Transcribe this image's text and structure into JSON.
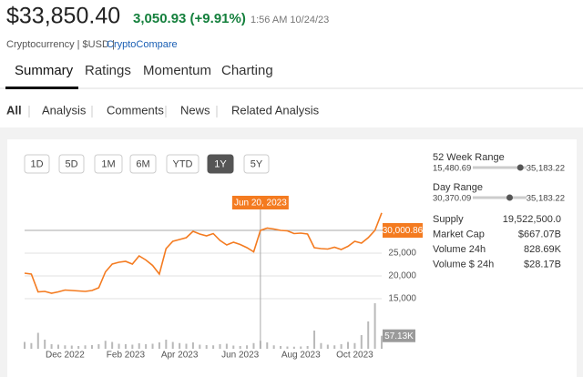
{
  "header": {
    "price": "$33,850.40",
    "change": "3,050.93 (+9.91%)",
    "time": "1:56 AM 10/24/23",
    "category": "Cryptocurrency | $USD |",
    "source": "CryptoCompare"
  },
  "tabs": [
    "Summary",
    "Ratings",
    "Momentum",
    "Charting"
  ],
  "active_tab": 0,
  "subtabs": [
    "All",
    "Analysis",
    "Comments",
    "News",
    "Related Analysis"
  ],
  "active_subtab": 0,
  "ranges": [
    "1D",
    "5D",
    "1M",
    "6M",
    "YTD",
    "1Y",
    "5Y"
  ],
  "active_range": 5,
  "price_value": 33850.4,
  "week52": {
    "title": "52 Week Range",
    "low": {
      "value": 15480.69,
      "label": "15,480.69"
    },
    "high": {
      "value": 35183.22,
      "label": "35,183.22"
    }
  },
  "day": {
    "title": "Day Range",
    "low": {
      "value": 30370.09,
      "label": "30,370.09"
    },
    "high": {
      "value": 35183.22,
      "label": "35,183.22"
    }
  },
  "stats": [
    {
      "label": "Supply",
      "value": "19,522,500.0"
    },
    {
      "label": "Market Cap",
      "value": "$667.07B"
    },
    {
      "label": "Volume 24h",
      "value": "828.69K"
    },
    {
      "label": "Volume $ 24h",
      "value": "$28.17B"
    }
  ],
  "chart_data": {
    "type": "line",
    "color": "#f47b20",
    "categories": [
      null,
      null,
      null,
      null,
      null,
      null,
      "Dec 2022",
      null,
      null,
      null,
      null,
      null,
      null,
      null,
      null,
      "Feb 2023",
      null,
      null,
      null,
      null,
      null,
      null,
      null,
      "Apr 2023",
      null,
      null,
      null,
      null,
      null,
      null,
      null,
      null,
      "Jun 2023",
      null,
      null,
      null,
      null,
      null,
      null,
      null,
      null,
      "Aug 2023",
      null,
      null,
      null,
      null,
      null,
      null,
      null,
      "Oct 2023",
      null,
      null,
      null,
      null
    ],
    "values": [
      20600,
      20400,
      16500,
      16600,
      16200,
      16500,
      16900,
      16800,
      16700,
      16600,
      16800,
      17400,
      20900,
      22600,
      23000,
      23200,
      22600,
      24400,
      23500,
      22300,
      20400,
      26000,
      27600,
      28000,
      28400,
      29800,
      29200,
      28800,
      29300,
      27800,
      26800,
      27400,
      26900,
      26200,
      25300,
      30000,
      30500,
      30300,
      30000,
      29900,
      29300,
      29400,
      29200,
      26200,
      26000,
      25900,
      26300,
      25800,
      26500,
      27600,
      27200,
      28400,
      30000,
      33850
    ],
    "volume": [
      30000,
      25000,
      70000,
      40000,
      20000,
      18000,
      15000,
      14000,
      12000,
      15000,
      16000,
      20000,
      35000,
      30000,
      22000,
      20000,
      18000,
      24000,
      20000,
      22000,
      28000,
      40000,
      30000,
      25000,
      22000,
      28000,
      18000,
      16000,
      15000,
      20000,
      22000,
      14000,
      12000,
      15000,
      25000,
      35000,
      28000,
      15000,
      12000,
      10000,
      9000,
      10000,
      12000,
      80000,
      25000,
      18000,
      15000,
      20000,
      30000,
      25000,
      60000,
      120000,
      200000,
      57130
    ],
    "volume_color": "#b9b9b9",
    "volume_label": "57.13K",
    "ylim": [
      11800,
      37000
    ],
    "vlim": [
      0,
      220000
    ],
    "yticks": [
      {
        "value": 15000,
        "label": "15,000"
      },
      {
        "value": 20000,
        "label": "20,000"
      },
      {
        "value": 25000,
        "label": "25,000"
      }
    ],
    "grid": true,
    "crosshair_index": 35,
    "crosshair_label": "Jun 20, 2023",
    "crosshair_value": {
      "value": 30000.86,
      "label": "30,000.86"
    }
  }
}
